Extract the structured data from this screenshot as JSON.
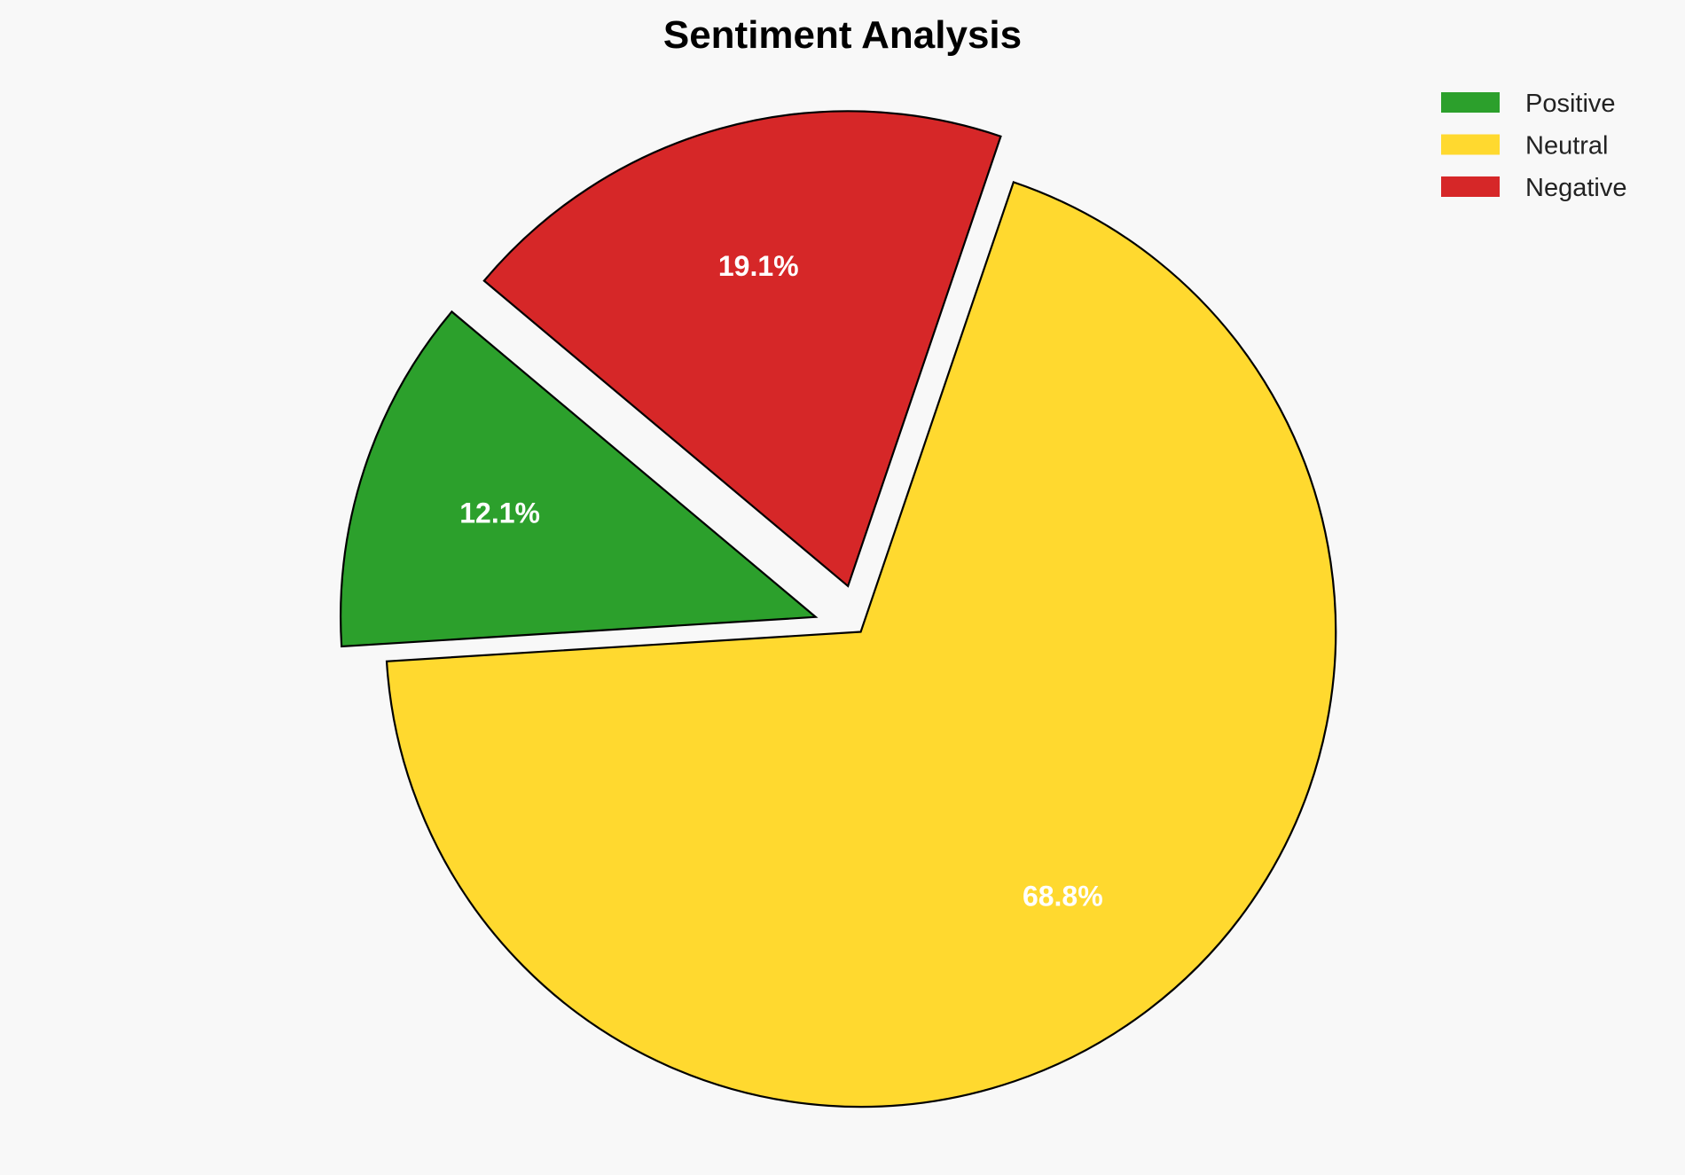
{
  "chart_data": {
    "type": "pie",
    "title": "Sentiment Analysis",
    "categories": [
      "Positive",
      "Neutral",
      "Negative"
    ],
    "values": [
      12.1,
      68.8,
      19.1
    ],
    "labels": [
      "12.1%",
      "68.8%",
      "19.1%"
    ],
    "colors": [
      "#2ca02c",
      "#ffd92f",
      "#d62728"
    ],
    "explode": [
      0.1,
      0,
      0.1
    ],
    "start_angle": 140,
    "direction": "counterclockwise",
    "legend_placement": "top-right",
    "edge_color": "#000000"
  }
}
